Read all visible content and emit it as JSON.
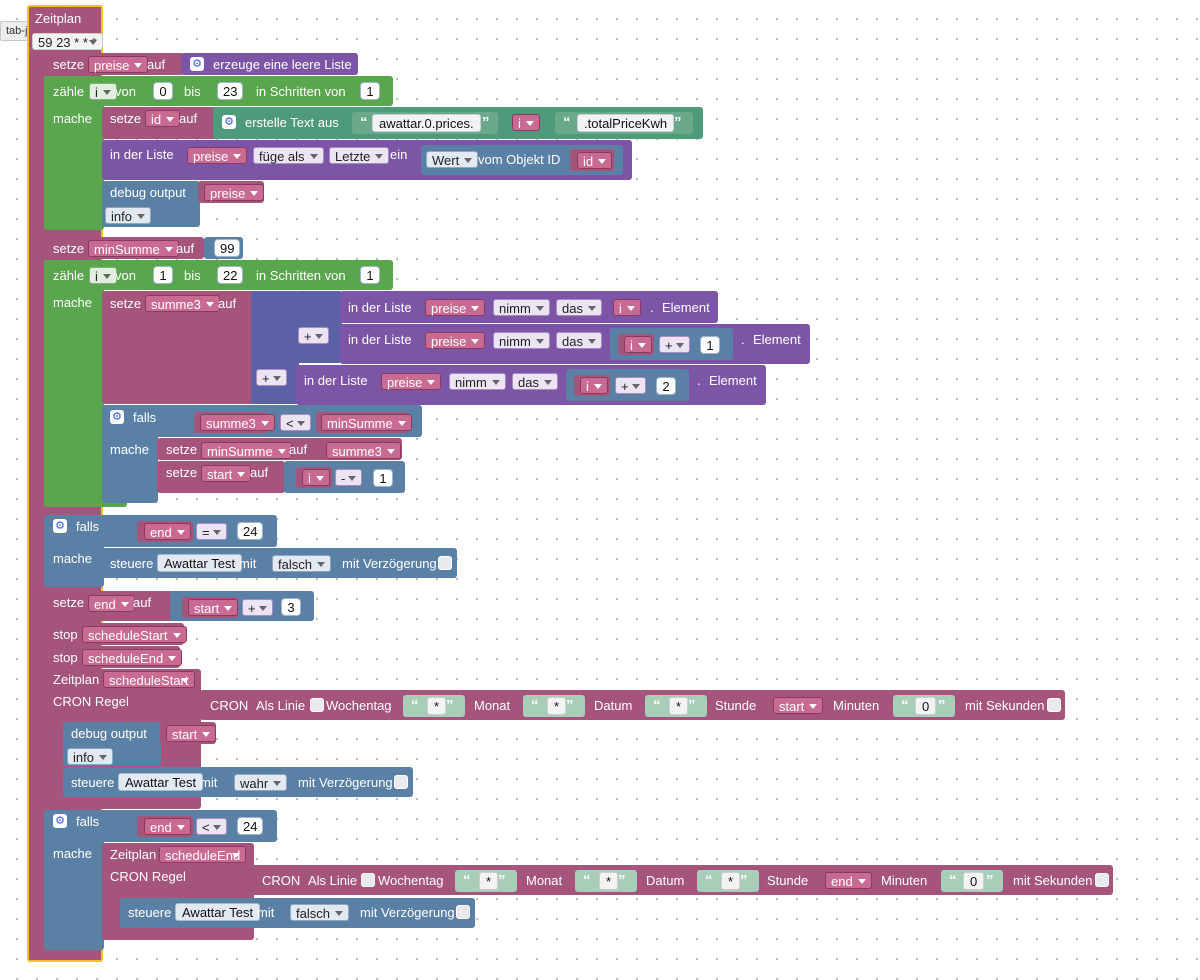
{
  "tooltip": "tab-javascript",
  "root": {
    "title": "Zeitplan",
    "cron": "59 23 * * *",
    "cron_prefix": "59 23",
    "cron_suffix": "* * *"
  },
  "kw": {
    "setze": "setze",
    "auf": "auf",
    "zaehle": "zähle",
    "von": "von",
    "bis": "bis",
    "in_schritten_von": "in Schritten von",
    "mache": "mache",
    "erzeuge_leere_liste": "erzeuge eine leere Liste",
    "erstelle_text_aus": "erstelle Text aus",
    "in_der_liste": "in der Liste",
    "ein": "ein",
    "vom_objekt_id": "vom Objekt ID",
    "debug_output": "debug output",
    "element": "Element",
    "falls": "falls",
    "steuere": "steuere",
    "mit": "mit",
    "mit_verzoegerung": "mit Verzögerung",
    "stop": "stop",
    "zeitplan": "Zeitplan",
    "cron_regel": "CRON Regel",
    "cron": "CRON",
    "als_linie": "Als Linie",
    "wochentag": "Wochentag",
    "monat": "Monat",
    "datum": "Datum",
    "stunde": "Stunde",
    "minuten": "Minuten",
    "mit_sekunden": "mit Sekunden",
    "dot": "."
  },
  "vars": {
    "preise": "preise",
    "i": "i",
    "id": "id",
    "minSumme": "minSumme",
    "summe3": "summe3",
    "start": "start",
    "end": "end",
    "scheduleStart": "scheduleStart",
    "scheduleEnd": "scheduleEnd"
  },
  "opts": {
    "fuege_als": "füge als",
    "letzte": "Letzte",
    "wert": "Wert",
    "nimm": "nimm",
    "das": "das",
    "info": "info",
    "plus": "+",
    "minus": "-",
    "lt": "<",
    "eq": "=",
    "falsch": "falsch",
    "wahr": "wahr"
  },
  "values": {
    "n0": "0",
    "n23": "23",
    "n1": "1",
    "n99": "99",
    "n22": "22",
    "n2": "2",
    "n24": "24",
    "n3": "3",
    "star": "*",
    "minute0": "0"
  },
  "strings": {
    "prices": "awattar.0.prices.",
    "total": ".totalPriceKwh",
    "device": "Awattar Test"
  },
  "colors": {
    "pink": "#a5557b",
    "purple": "#7d55a6",
    "green": "#5aa64e",
    "blue": "#5b80a5",
    "teal": "#4f9a7a",
    "root_border": "#f2c12e"
  }
}
